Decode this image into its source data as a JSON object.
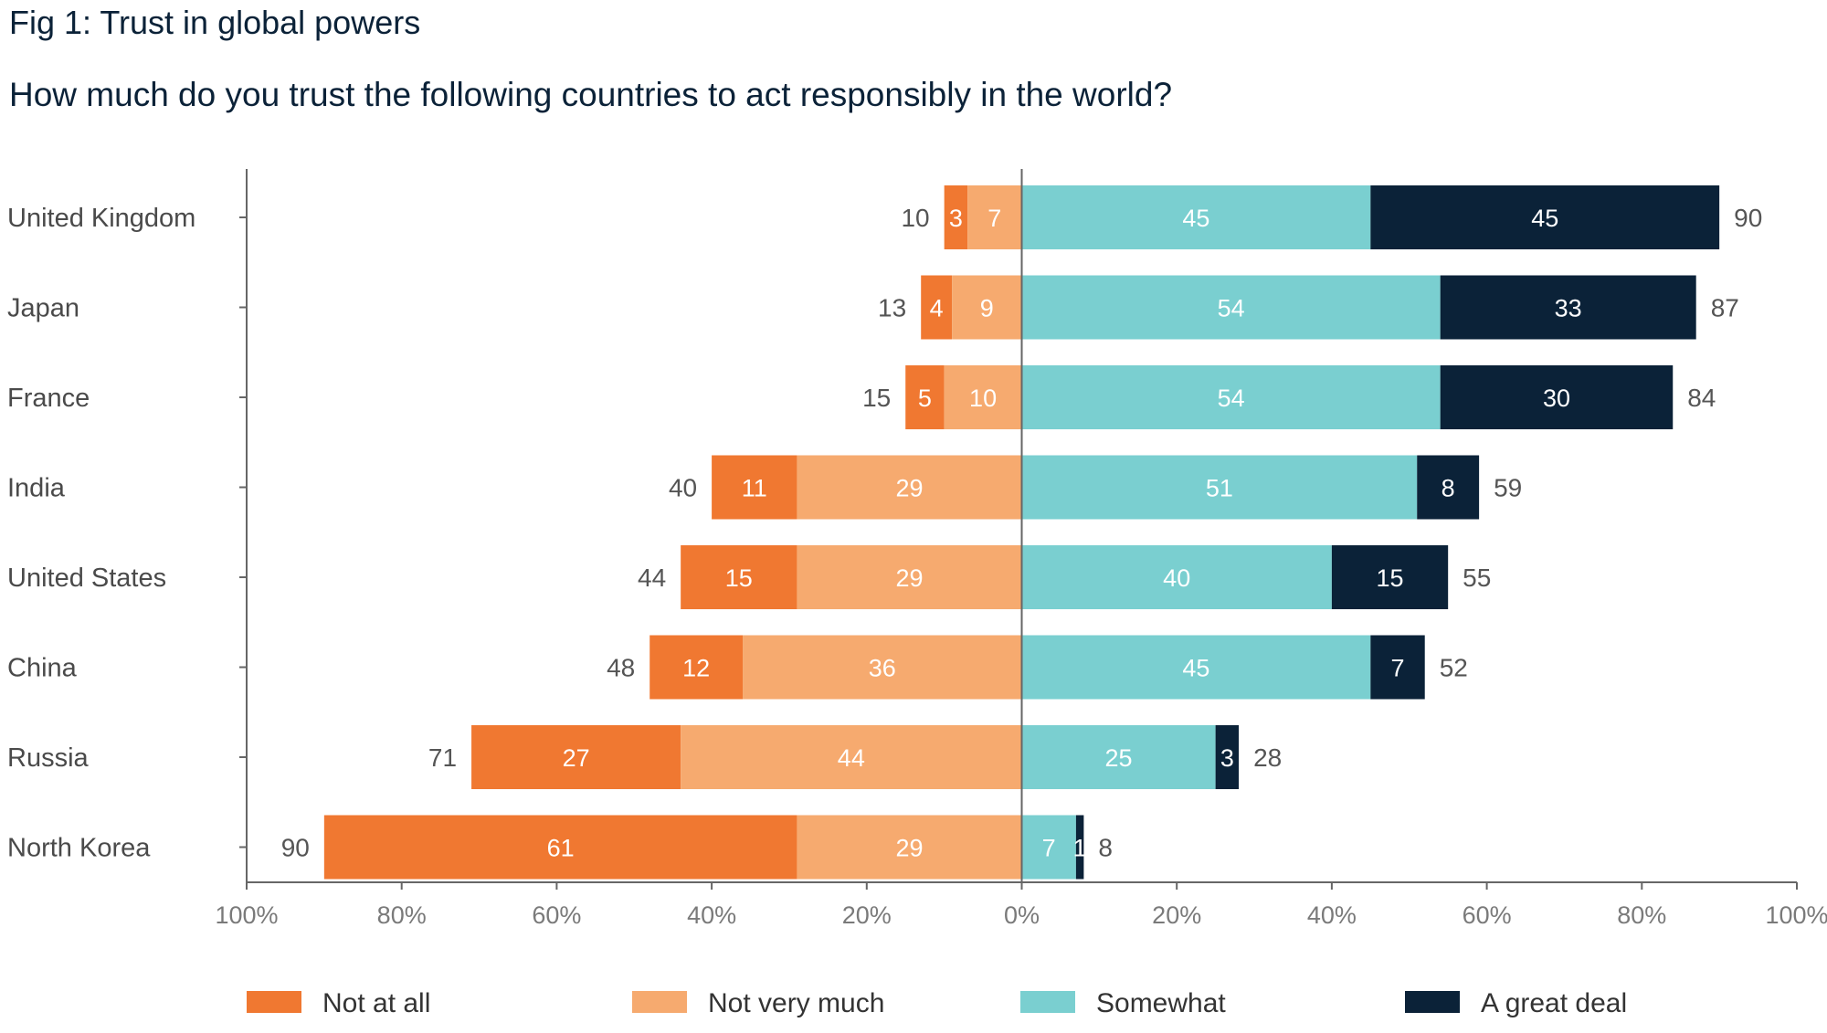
{
  "title": "Fig 1: Trust in global powers",
  "subtitle": "How much do you trust the following countries to act responsibly in the world?",
  "colors": {
    "not_at_all": "#f07831",
    "not_very_much": "#f6aa6f",
    "somewhat": "#7acfd0",
    "great_deal": "#0b2238",
    "axis": "#666666"
  },
  "chart_data": {
    "type": "bar",
    "orientation": "horizontal-diverging",
    "title": "Fig 1: Trust in global powers",
    "subtitle": "How much do you trust the following countries to act responsibly in the world?",
    "categories": [
      "United Kingdom",
      "Japan",
      "France",
      "India",
      "United States",
      "China",
      "Russia",
      "North Korea"
    ],
    "series": [
      {
        "name": "Not at all",
        "side": "negative",
        "values": [
          3,
          4,
          5,
          11,
          15,
          12,
          27,
          61
        ]
      },
      {
        "name": "Not very much",
        "side": "negative",
        "values": [
          7,
          9,
          10,
          29,
          29,
          36,
          44,
          29
        ]
      },
      {
        "name": "Somewhat",
        "side": "positive",
        "values": [
          45,
          54,
          54,
          51,
          40,
          45,
          25,
          7
        ]
      },
      {
        "name": "A great deal",
        "side": "positive",
        "values": [
          45,
          33,
          30,
          8,
          15,
          7,
          3,
          1
        ]
      }
    ],
    "negative_totals": [
      10,
      13,
      15,
      40,
      44,
      48,
      71,
      90
    ],
    "positive_totals": [
      90,
      87,
      84,
      59,
      55,
      52,
      28,
      8
    ],
    "xlim": [
      -100,
      100
    ],
    "x_ticks": [
      -100,
      -80,
      -60,
      -40,
      -20,
      0,
      20,
      40,
      60,
      80,
      100
    ],
    "x_tick_labels": [
      "100%",
      "80%",
      "60%",
      "40%",
      "20%",
      "0%",
      "20%",
      "40%",
      "60%",
      "80%",
      "100%"
    ],
    "xlabel": "",
    "ylabel": "",
    "legend_position": "bottom",
    "grid": false
  }
}
